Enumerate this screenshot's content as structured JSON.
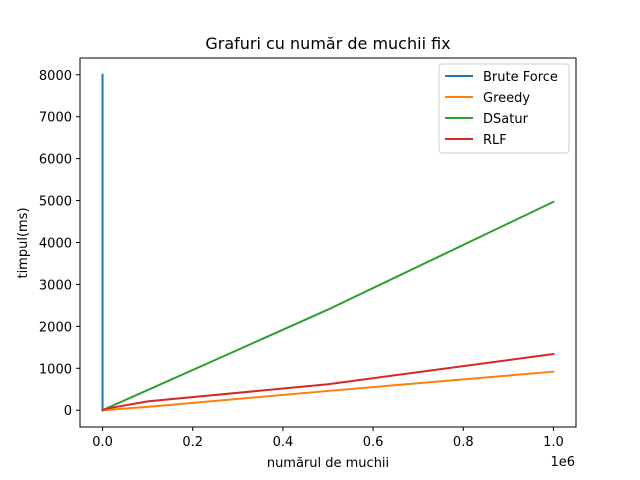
{
  "chart_data": {
    "type": "line",
    "title": "Grafuri cu număr de muchii fix",
    "xlabel": "numărul de muchii",
    "ylabel": "timpul(ms)",
    "x_offset_label": "1e6",
    "xlim": [
      -50000,
      1050000
    ],
    "ylim": [
      -400,
      8400
    ],
    "xticks": [
      0,
      200000,
      400000,
      600000,
      800000,
      1000000
    ],
    "xtick_labels": [
      "0.0",
      "0.2",
      "0.4",
      "0.6",
      "0.8",
      "1.0"
    ],
    "yticks": [
      0,
      1000,
      2000,
      3000,
      4000,
      5000,
      6000,
      7000,
      8000
    ],
    "ytick_labels": [
      "0",
      "1000",
      "2000",
      "3000",
      "4000",
      "5000",
      "6000",
      "7000",
      "8000"
    ],
    "grid": false,
    "legend_position": "upper right",
    "series": [
      {
        "name": "Brute Force",
        "color": "#1f77b4",
        "x": [
          0,
          0
        ],
        "y": [
          0,
          8000
        ]
      },
      {
        "name": "Greedy",
        "color": "#ff7f0e",
        "x": [
          0,
          1000,
          10000,
          100000,
          500000,
          1000000
        ],
        "y": [
          0,
          1,
          8,
          80,
          460,
          920
        ]
      },
      {
        "name": "DSatur",
        "color": "#2ca02c",
        "x": [
          0,
          1000,
          10000,
          100000,
          500000,
          1000000
        ],
        "y": [
          0,
          5,
          50,
          480,
          2400,
          4970
        ]
      },
      {
        "name": "RLF",
        "color": "#d62728",
        "x": [
          0,
          1000,
          10000,
          100000,
          500000,
          1000000
        ],
        "y": [
          0,
          5,
          40,
          210,
          620,
          1340
        ]
      }
    ]
  }
}
